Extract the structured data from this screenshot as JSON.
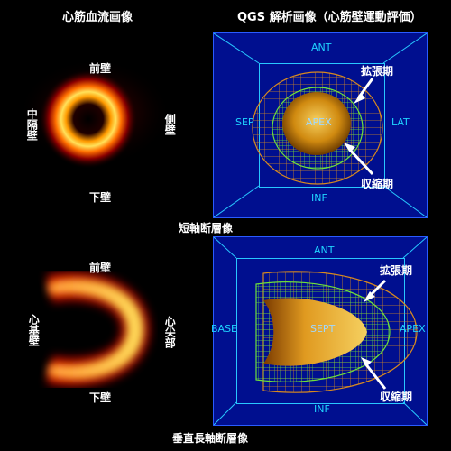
{
  "headers": {
    "perfusion": "心筋血流画像",
    "qgs": "QGS 解析画像（心筋壁運動評価）"
  },
  "short_axis": {
    "anterior": "前壁",
    "septal": "中隔壁",
    "lateral": "側壁",
    "inferior": "下壁",
    "caption": "短軸断層像",
    "qgs": {
      "top": "ANT",
      "left": "SEP",
      "right": "LAT",
      "bottom": "INF",
      "center": "APEX",
      "diastole": "拡張期",
      "systole": "収縮期"
    }
  },
  "vertical_long_axis": {
    "anterior": "前壁",
    "base": "心基壁",
    "apex": "心尖部",
    "inferior": "下壁",
    "caption": "垂直長軸断層像",
    "qgs": {
      "top": "ANT",
      "left": "BASE",
      "right": "APEX",
      "bottom": "INF",
      "center": "SEPT",
      "diastole": "拡張期",
      "systole": "収縮期"
    }
  },
  "colors": {
    "background": "#000000",
    "panel": "#000f8f",
    "frame": "#28c8ff",
    "mesh_diastole": "#d88a1f",
    "mesh_systole": "#6fe03a",
    "heart": "#e8a020"
  }
}
